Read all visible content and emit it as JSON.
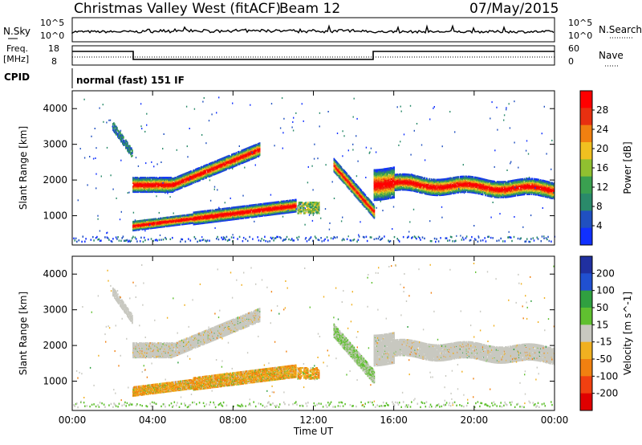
{
  "header": {
    "title": "Christmas Valley West (fitACF)",
    "beam": "Beam 12",
    "date": "07/May/2015"
  },
  "strip_labels": {
    "nsky": "N.Sky",
    "nsky_hi": "10^5",
    "nsky_lo": "10^0",
    "nsearch": "N.Search",
    "freq": "Freq.",
    "freq_unit": "[MHz]",
    "freq_hi": "18",
    "freq_lo": "8",
    "nave": "Nave",
    "nave_hi": "60",
    "nave_lo": "0",
    "cpid": "CPID",
    "cpid_value": "normal (fast) 151 IF"
  },
  "colors": {
    "power": [
      "#1030ff",
      "#2050c0",
      "#2a8a6a",
      "#3aa050",
      "#90c030",
      "#f0c020",
      "#f08010",
      "#e83010",
      "#ff0000"
    ],
    "velocity": [
      "#2030a0",
      "#2050d0",
      "#30a040",
      "#60c030",
      "#c8c8c0",
      "#f0b020",
      "#f08010",
      "#f04010",
      "#e00000"
    ]
  },
  "chart_data": [
    {
      "type": "heatmap",
      "name": "Power",
      "xlabel": "",
      "ylabel": "Slant Range [km]",
      "x_ticks": [
        "00:00",
        "04:00",
        "08:00",
        "12:00",
        "16:00",
        "20:00",
        "00:00"
      ],
      "y_ticks": [
        "1000",
        "2000",
        "3000",
        "4000"
      ],
      "colorbar": {
        "label": "Power [dB]",
        "ticks": [
          "4",
          "8",
          "12",
          "16",
          "20",
          "24",
          "28"
        ]
      },
      "x_range": [
        0,
        24
      ],
      "y_range": [
        180,
        4500
      ],
      "grid": false
    },
    {
      "type": "heatmap",
      "name": "Velocity",
      "xlabel": "Time UT",
      "ylabel": "Slant Range [km]",
      "x_ticks": [
        "00:00",
        "04:00",
        "08:00",
        "12:00",
        "16:00",
        "20:00",
        "00:00"
      ],
      "y_ticks": [
        "1000",
        "2000",
        "3000",
        "4000"
      ],
      "colorbar": {
        "label": "Velocity [m s^-1]",
        "ticks": [
          "200",
          "100",
          "50",
          "15",
          "-15",
          "-50",
          "-100",
          "-200"
        ]
      },
      "x_range": [
        0,
        24
      ],
      "y_range": [
        180,
        4500
      ],
      "grid": false
    }
  ]
}
